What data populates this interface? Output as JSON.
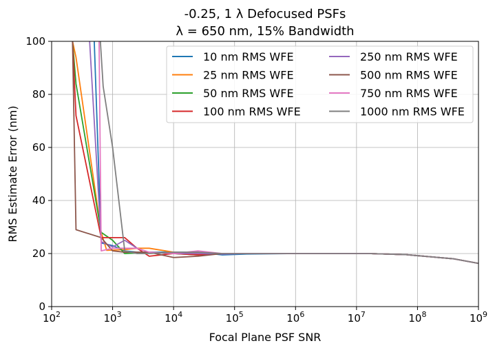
{
  "chart_data": {
    "type": "line",
    "title": "-0.25, 1 λ Defocused PSFs",
    "subtitle": "λ = 650 nm, 15% Bandwidth",
    "xlabel": "Focal Plane PSF SNR",
    "ylabel": "RMS Estimate Error (nm)",
    "xscale": "log",
    "xlim": [
      100,
      1000000000
    ],
    "ylim": [
      0,
      100
    ],
    "grid": true,
    "legend_position": "top-right",
    "legend_columns": 2,
    "x_ticks": [
      {
        "value": 100,
        "base": "10",
        "exp": "2"
      },
      {
        "value": 1000,
        "base": "10",
        "exp": "3"
      },
      {
        "value": 10000,
        "base": "10",
        "exp": "4"
      },
      {
        "value": 100000,
        "base": "10",
        "exp": "5"
      },
      {
        "value": 1000000,
        "base": "10",
        "exp": "6"
      },
      {
        "value": 10000000,
        "base": "10",
        "exp": "7"
      },
      {
        "value": 100000000,
        "base": "10",
        "exp": "8"
      },
      {
        "value": 1000000000,
        "base": "10",
        "exp": "9"
      }
    ],
    "y_ticks": [
      {
        "value": 0,
        "label": "0"
      },
      {
        "value": 20,
        "label": "20"
      },
      {
        "value": 40,
        "label": "40"
      },
      {
        "value": 60,
        "label": "60"
      },
      {
        "value": 80,
        "label": "80"
      },
      {
        "value": 100,
        "label": "100"
      }
    ],
    "series": [
      {
        "name": "10 nm RMS WFE",
        "color": "#1f77b4",
        "x": [
          500,
          650,
          1000,
          1580,
          2510,
          3980,
          6310,
          10000,
          25100,
          63100,
          158000,
          1000000,
          10000000,
          15800000,
          63100000,
          100000000,
          398000000,
          1000000000
        ],
        "y": [
          100,
          24,
          23,
          21,
          20.5,
          20.5,
          20.5,
          20.5,
          20.5,
          19.5,
          19.8,
          20,
          20,
          20,
          19.6,
          19.2,
          18,
          16.3
        ]
      },
      {
        "name": "25 nm RMS WFE",
        "color": "#ff7f0e",
        "x": [
          220,
          251,
          650,
          800,
          1580,
          2510,
          3980,
          10000,
          25100,
          63100,
          158000,
          1000000,
          10000000,
          15800000,
          63100000,
          100000000,
          398000000,
          1000000000
        ],
        "y": [
          100,
          94,
          28,
          21.2,
          21.5,
          22,
          22,
          20.5,
          20,
          20,
          20,
          20,
          20,
          20,
          19.6,
          19.2,
          18,
          16.3
        ]
      },
      {
        "name": "50 nm RMS WFE",
        "color": "#2ca02c",
        "x": [
          220,
          251,
          650,
          1000,
          1580,
          2510,
          3980,
          10000,
          25100,
          63100,
          158000,
          1000000,
          10000000,
          15800000,
          63100000,
          100000000,
          398000000,
          1000000000
        ],
        "y": [
          100,
          84,
          28,
          25,
          20,
          20.2,
          20.5,
          20,
          19.5,
          20,
          20,
          20,
          20,
          20,
          19.6,
          19.2,
          18,
          16.3
        ]
      },
      {
        "name": "100 nm RMS WFE",
        "color": "#d62728",
        "x": [
          220,
          251,
          650,
          1000,
          1580,
          2510,
          3980,
          10000,
          25100,
          63100,
          158000,
          1000000,
          10000000,
          15800000,
          63100000,
          100000000,
          398000000,
          1000000000
        ],
        "y": [
          100,
          72,
          26,
          26,
          26,
          22,
          19,
          20,
          19.5,
          20,
          20,
          20,
          20,
          20,
          19.6,
          19.2,
          18,
          16.3
        ]
      },
      {
        "name": "250 nm RMS WFE",
        "color": "#9467bd",
        "x": [
          420,
          650,
          1000,
          1580,
          2510,
          3980,
          10000,
          25100,
          63100,
          158000,
          1000000,
          10000000,
          15800000,
          63100000,
          100000000,
          398000000,
          1000000000
        ],
        "y": [
          100,
          24.5,
          22.5,
          25,
          22,
          20.5,
          20,
          20,
          19.8,
          20,
          20,
          20,
          20,
          19.6,
          19.2,
          18,
          16.3
        ]
      },
      {
        "name": "500 nm RMS WFE",
        "color": "#8c564b",
        "x": [
          220,
          251,
          650,
          1000,
          1580,
          2510,
          3980,
          10000,
          25100,
          63100,
          158000,
          1000000,
          10000000,
          15800000,
          63100000,
          100000000,
          398000000,
          1000000000
        ],
        "y": [
          100,
          29,
          26,
          21,
          20.5,
          20.5,
          20.5,
          18.5,
          19,
          20,
          20,
          20,
          20,
          20,
          19.6,
          19.2,
          18,
          16.3
        ]
      },
      {
        "name": "750 nm RMS WFE",
        "color": "#e377c2",
        "x": [
          600,
          650,
          1000,
          1580,
          2510,
          3980,
          10000,
          25100,
          63100,
          158000,
          1000000,
          10000000,
          15800000,
          63100000,
          100000000,
          398000000,
          1000000000
        ],
        "y": [
          100,
          21,
          22,
          22,
          22,
          20.5,
          20,
          21,
          20,
          20,
          20,
          20,
          20,
          19.6,
          19.2,
          18,
          16.3
        ]
      },
      {
        "name": "1000 nm RMS WFE",
        "color": "#7f7f7f",
        "x": [
          630,
          700,
          1000,
          1580,
          2510,
          3980,
          10000,
          25100,
          63100,
          158000,
          1000000,
          10000000,
          15800000,
          63100000,
          100000000,
          398000000,
          1000000000
        ],
        "y": [
          100,
          83,
          60,
          21,
          20,
          20,
          20.5,
          20.5,
          20,
          20,
          20,
          20,
          20,
          19.6,
          19.2,
          18,
          16.3
        ]
      }
    ]
  }
}
